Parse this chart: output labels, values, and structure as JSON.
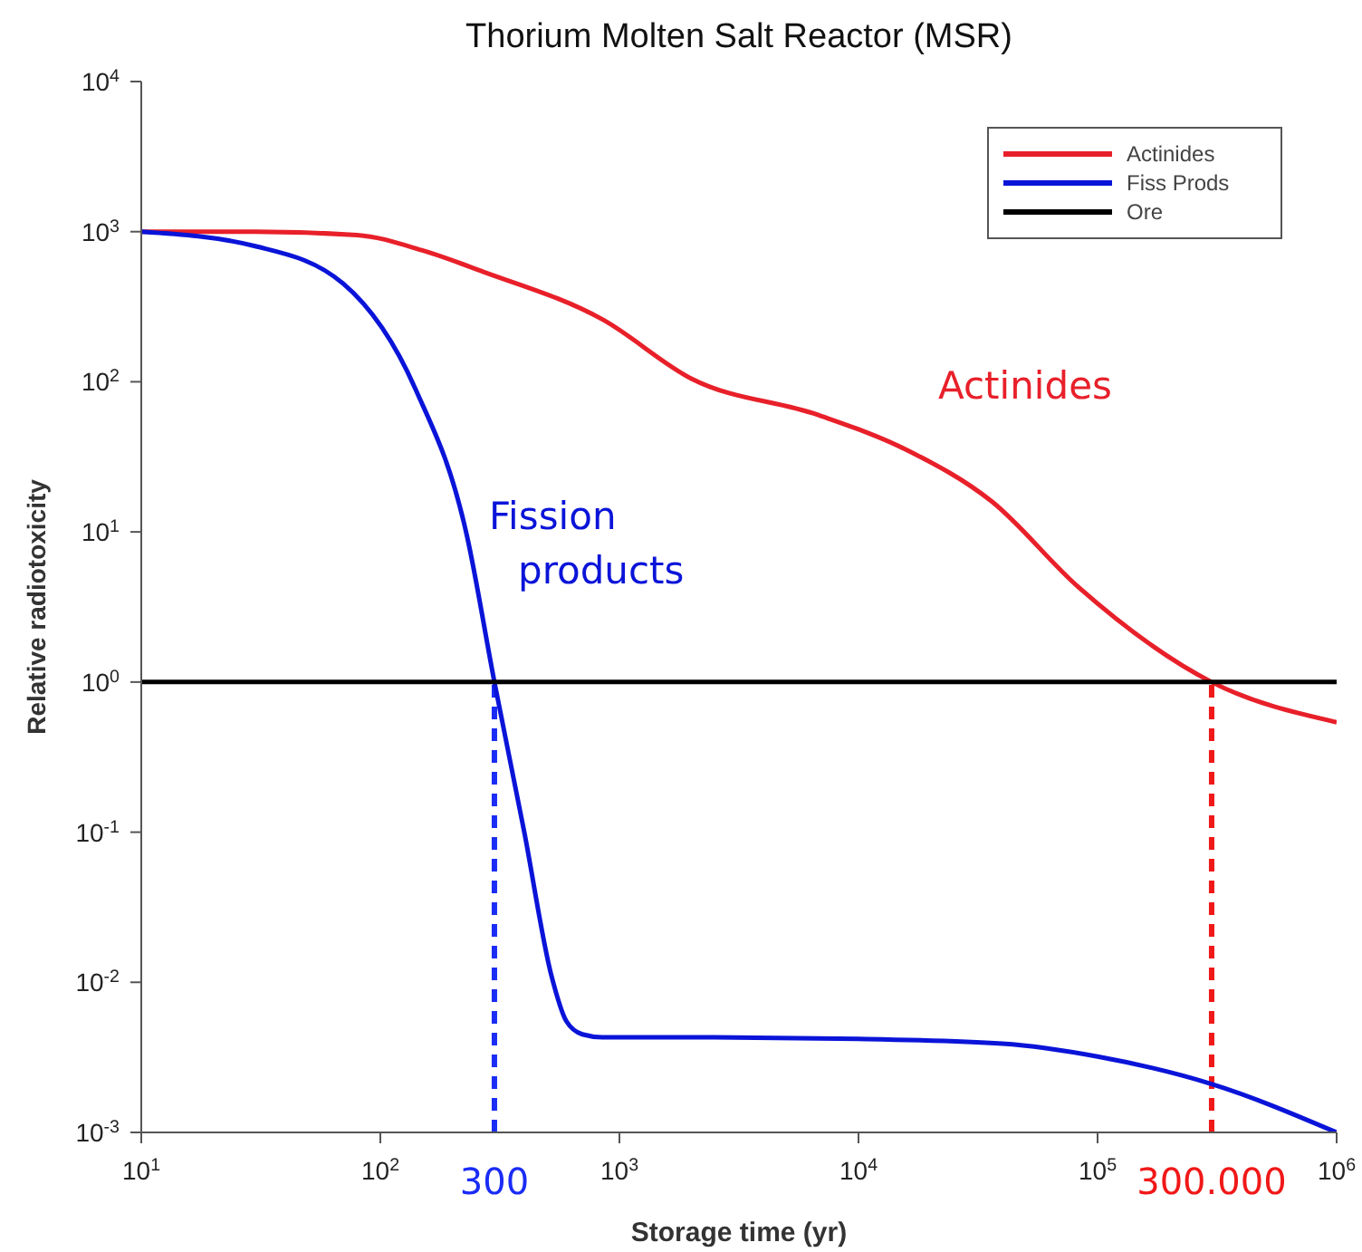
{
  "chart_data": {
    "type": "line",
    "title": "Thorium Molten Salt Reactor (MSR)",
    "xlabel": "Storage time (yr)",
    "ylabel": "Relative radiotoxicity",
    "log": "xy",
    "legend": "top right",
    "marker": "none",
    "line_style": "solid",
    "xlim": [
      10,
      1000000
    ],
    "ylim": [
      0.001,
      10000
    ],
    "xticks": [
      {
        "value": 10,
        "label": "10$^{1}$"
      },
      {
        "value": 100,
        "label": "10$^{2}$"
      },
      {
        "value": 1000,
        "label": "10$^{3}$"
      },
      {
        "value": 10000,
        "label": "10$^{4}$"
      },
      {
        "value": 100000,
        "label": "10$^{5}$"
      },
      {
        "value": 1000000,
        "label": "10$^{6}$"
      }
    ],
    "yticks": [
      {
        "value": 0.001,
        "label": "10$^{-3}$"
      },
      {
        "value": 0.01,
        "label": "10$^{-2}$"
      },
      {
        "value": 0.1,
        "label": "10$^{-1}$"
      },
      {
        "value": 1,
        "label": "10$^{0}$"
      },
      {
        "value": 10,
        "label": "10$^{1}$"
      },
      {
        "value": 100,
        "label": "10$^{2}$"
      },
      {
        "value": 1000,
        "label": "10$^{3}$"
      },
      {
        "value": 10000,
        "label": "10$^{4}$"
      }
    ],
    "series": [
      {
        "name": "Actinides",
        "color": "#e8202a",
        "x": [
          10,
          30,
          80,
          150,
          270,
          850,
          2000,
          6800,
          16000,
          36000,
          83000,
          300000,
          1000000
        ],
        "values": [
          1000,
          1000,
          950,
          750,
          540,
          260,
          105,
          60,
          35,
          16,
          4.3,
          1,
          0.54
        ]
      },
      {
        "name": "Fiss Prods",
        "color": "#0a14d8",
        "x": [
          10,
          30,
          70,
          140,
          230,
          300,
          400,
          520,
          600,
          700,
          850,
          2000,
          10000,
          40000,
          100000,
          300000,
          1000000
        ],
        "values": [
          1000,
          800,
          450,
          90,
          9.5,
          1,
          0.1,
          0.011,
          0.0055,
          0.0045,
          0.0043,
          0.0043,
          0.0042,
          0.0039,
          0.0032,
          0.0021,
          0.001
        ]
      },
      {
        "name": "Ore",
        "color": "#000000",
        "x": [
          10,
          1000000
        ],
        "values": [
          1,
          1
        ]
      }
    ],
    "ref_lines": [
      {
        "axis": "x",
        "value": 300,
        "label": "300",
        "color": "#1a2cf5",
        "line_style": "dashed"
      },
      {
        "axis": "x",
        "value": 300000,
        "label": "300.000",
        "color": "#f01818",
        "line_style": "dashed"
      }
    ],
    "annotations": [
      "Fission products",
      "Actinides"
    ]
  }
}
